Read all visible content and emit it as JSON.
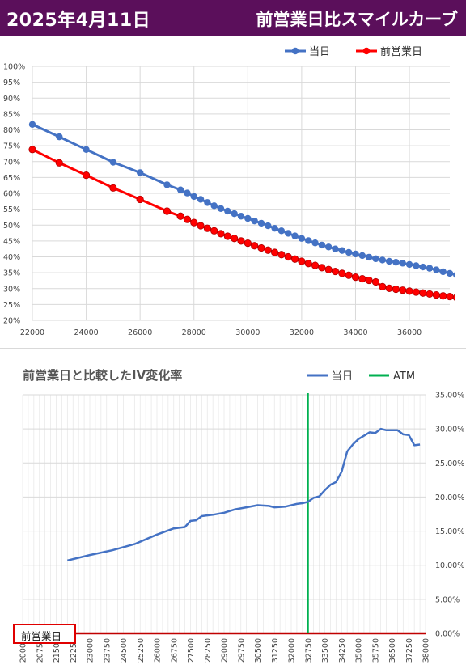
{
  "header": {
    "date": "2025年4月11日",
    "title": "前営業日比スマイルカーブ"
  },
  "chart_data": [
    {
      "type": "line",
      "title": "",
      "legend_position": "top-right",
      "grid": true,
      "xlim": [
        22000,
        37500
      ],
      "ylim": [
        0.2,
        1.0
      ],
      "x_ticks": [
        "22000",
        "24000",
        "26000",
        "28000",
        "30000",
        "32000",
        "34000",
        "36000"
      ],
      "y_ticks": [
        "20%",
        "25%",
        "30%",
        "35%",
        "40%",
        "45%",
        "50%",
        "55%",
        "60%",
        "65%",
        "70%",
        "75%",
        "80%",
        "85%",
        "90%",
        "95%",
        "100%"
      ],
      "series": [
        {
          "name": "当日",
          "color": "#4472c4",
          "points": [
            [
              22000,
              0.817
            ],
            [
              23000,
              0.778
            ],
            [
              24000,
              0.738
            ],
            [
              25000,
              0.698
            ],
            [
              26000,
              0.665
            ],
            [
              27000,
              0.627
            ],
            [
              27500,
              0.611
            ],
            [
              27750,
              0.601
            ],
            [
              28000,
              0.59
            ],
            [
              28250,
              0.581
            ],
            [
              28500,
              0.571
            ],
            [
              28750,
              0.561
            ],
            [
              29000,
              0.552
            ],
            [
              29250,
              0.544
            ],
            [
              29500,
              0.536
            ],
            [
              29750,
              0.528
            ],
            [
              30000,
              0.521
            ],
            [
              30250,
              0.513
            ],
            [
              30500,
              0.506
            ],
            [
              30750,
              0.498
            ],
            [
              31000,
              0.49
            ],
            [
              31250,
              0.482
            ],
            [
              31500,
              0.474
            ],
            [
              31750,
              0.466
            ],
            [
              32000,
              0.458
            ],
            [
              32250,
              0.451
            ],
            [
              32500,
              0.444
            ],
            [
              32750,
              0.437
            ],
            [
              33000,
              0.431
            ],
            [
              33250,
              0.425
            ],
            [
              33500,
              0.42
            ],
            [
              33750,
              0.414
            ],
            [
              34000,
              0.409
            ],
            [
              34250,
              0.404
            ],
            [
              34500,
              0.399
            ],
            [
              34750,
              0.394
            ],
            [
              35000,
              0.39
            ],
            [
              35250,
              0.386
            ],
            [
              35500,
              0.383
            ],
            [
              35750,
              0.38
            ],
            [
              36000,
              0.376
            ],
            [
              36250,
              0.372
            ],
            [
              36500,
              0.368
            ],
            [
              36750,
              0.364
            ],
            [
              37000,
              0.359
            ],
            [
              37250,
              0.353
            ],
            [
              37500,
              0.348
            ],
            [
              37750,
              0.343
            ]
          ]
        },
        {
          "name": "前営業日",
          "color": "#ff0000",
          "points": [
            [
              22000,
              0.738
            ],
            [
              23000,
              0.696
            ],
            [
              24000,
              0.657
            ],
            [
              25000,
              0.617
            ],
            [
              26000,
              0.581
            ],
            [
              27000,
              0.544
            ],
            [
              27500,
              0.528
            ],
            [
              27750,
              0.518
            ],
            [
              28000,
              0.508
            ],
            [
              28250,
              0.498
            ],
            [
              28500,
              0.49
            ],
            [
              28750,
              0.482
            ],
            [
              29000,
              0.473
            ],
            [
              29250,
              0.465
            ],
            [
              29500,
              0.458
            ],
            [
              29750,
              0.45
            ],
            [
              30000,
              0.443
            ],
            [
              30250,
              0.435
            ],
            [
              30500,
              0.428
            ],
            [
              30750,
              0.421
            ],
            [
              31000,
              0.414
            ],
            [
              31250,
              0.407
            ],
            [
              31500,
              0.4
            ],
            [
              31750,
              0.393
            ],
            [
              32000,
              0.386
            ],
            [
              32250,
              0.379
            ],
            [
              32500,
              0.373
            ],
            [
              32750,
              0.366
            ],
            [
              33000,
              0.36
            ],
            [
              33250,
              0.354
            ],
            [
              33500,
              0.348
            ],
            [
              33750,
              0.342
            ],
            [
              34000,
              0.336
            ],
            [
              34250,
              0.331
            ],
            [
              34500,
              0.326
            ],
            [
              34750,
              0.321
            ],
            [
              35000,
              0.306
            ],
            [
              35250,
              0.301
            ],
            [
              35500,
              0.298
            ],
            [
              35750,
              0.295
            ],
            [
              36000,
              0.292
            ],
            [
              36250,
              0.289
            ],
            [
              36500,
              0.286
            ],
            [
              36750,
              0.283
            ],
            [
              37000,
              0.28
            ],
            [
              37250,
              0.277
            ],
            [
              37500,
              0.275
            ],
            [
              37750,
              0.272
            ],
            [
              38000,
              0.269
            ],
            [
              38250,
              0.266
            ]
          ]
        }
      ]
    },
    {
      "type": "line",
      "title": "前営業日と比較したIV変化率",
      "legend_position": "top-right",
      "grid": true,
      "xlim": [
        20000,
        38000
      ],
      "ylim": [
        0,
        0.35
      ],
      "y_axis_side": "right",
      "x_ticks": [
        "20000",
        "20750",
        "21500",
        "22250",
        "23000",
        "23750",
        "24500",
        "25250",
        "26000",
        "26750",
        "27500",
        "28250",
        "29000",
        "29750",
        "30500",
        "31250",
        "32000",
        "32750",
        "33500",
        "34250",
        "35000",
        "35750",
        "36500",
        "37250",
        "38000"
      ],
      "y_ticks": [
        "0.00%",
        "5.00%",
        "10.00%",
        "15.00%",
        "20.00%",
        "25.00%",
        "30.00%",
        "35.00%"
      ],
      "atm": 32750,
      "atm_name": "ATM",
      "atm_color": "#00b050",
      "baseline_color": "#c00000",
      "series": [
        {
          "name": "当日",
          "color": "#4472c4",
          "points": [
            [
              22000,
              0.107
            ],
            [
              23000,
              0.115
            ],
            [
              24000,
              0.122
            ],
            [
              25000,
              0.131
            ],
            [
              26000,
              0.145
            ],
            [
              26750,
              0.154
            ],
            [
              27250,
              0.156
            ],
            [
              27500,
              0.165
            ],
            [
              27750,
              0.166
            ],
            [
              28000,
              0.172
            ],
            [
              28500,
              0.174
            ],
            [
              29000,
              0.177
            ],
            [
              29500,
              0.182
            ],
            [
              30000,
              0.185
            ],
            [
              30500,
              0.188
            ],
            [
              31000,
              0.187
            ],
            [
              31250,
              0.185
            ],
            [
              31750,
              0.186
            ],
            [
              32250,
              0.19
            ],
            [
              32500,
              0.191
            ],
            [
              32750,
              0.193
            ],
            [
              33000,
              0.199
            ],
            [
              33250,
              0.201
            ],
            [
              33500,
              0.21
            ],
            [
              33750,
              0.218
            ],
            [
              34000,
              0.222
            ],
            [
              34250,
              0.237
            ],
            [
              34500,
              0.267
            ],
            [
              34750,
              0.277
            ],
            [
              35000,
              0.285
            ],
            [
              35500,
              0.295
            ],
            [
              35750,
              0.294
            ],
            [
              36000,
              0.3
            ],
            [
              36250,
              0.298
            ],
            [
              36750,
              0.298
            ],
            [
              37000,
              0.292
            ],
            [
              37250,
              0.291
            ],
            [
              37500,
              0.276
            ],
            [
              37750,
              0.277
            ]
          ]
        }
      ]
    }
  ],
  "redbox_label": "前営業日"
}
